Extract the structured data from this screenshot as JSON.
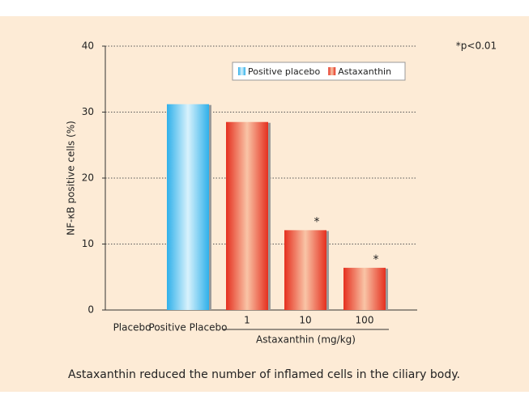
{
  "chart_data": {
    "type": "bar",
    "y_label": "NF-κB positive cells (%)",
    "caption": "Astaxanthin reduced the number of inflamed cells in the ciliary body.",
    "note": "*p<0.01",
    "categories": [
      "Placebo",
      "Positive Placebo",
      "1",
      "10",
      "100"
    ],
    "series": [
      {
        "name": "Positive placebo",
        "color": "#3ab8ee",
        "values": [
          null,
          31.2,
          null,
          null,
          null
        ]
      },
      {
        "name": "Astaxanthin",
        "color": "#e8392c",
        "values": [
          null,
          null,
          28.5,
          12.1,
          6.4
        ]
      }
    ],
    "groups": [
      {
        "label": "Astaxanthin (mg/kg)",
        "categories": [
          "1",
          "10",
          "100"
        ]
      }
    ],
    "annotations": [
      {
        "text": "*",
        "category": "10"
      },
      {
        "text": "*",
        "category": "100"
      }
    ],
    "ylim": [
      0,
      40
    ],
    "yticks": [
      0,
      10,
      20,
      30,
      40
    ],
    "grid": true,
    "legend": "top"
  }
}
